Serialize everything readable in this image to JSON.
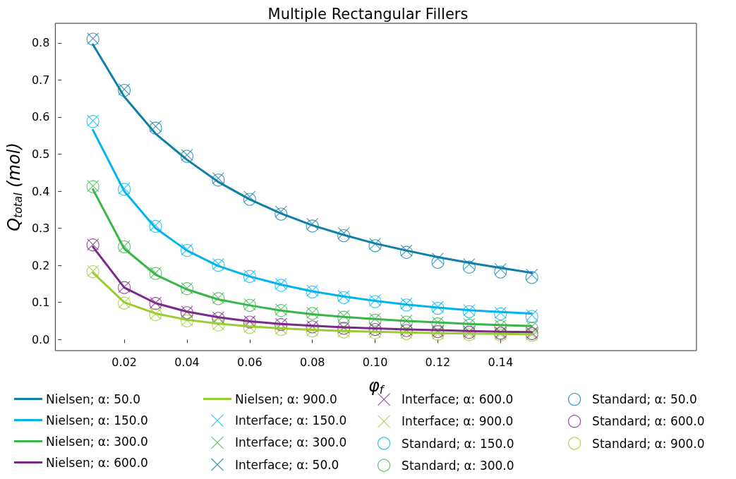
{
  "chart_data": {
    "type": "line",
    "title": "Multiple Rectangular Fillers",
    "xlabel": "φ$_{f}$",
    "ylabel": "Q$_{total}$ (mol)",
    "x": [
      0.01,
      0.02,
      0.03,
      0.04,
      0.05,
      0.06,
      0.07,
      0.08,
      0.09,
      0.1,
      0.11,
      0.12,
      0.13,
      0.14,
      0.15
    ],
    "xlim": [
      -0.002,
      0.2025
    ],
    "ylim": [
      -0.03,
      0.853
    ],
    "xticks": [
      {
        "value": 0.02,
        "label": "0.02"
      },
      {
        "value": 0.04,
        "label": "0.04"
      },
      {
        "value": 0.06,
        "label": "0.06"
      },
      {
        "value": 0.08,
        "label": "0.08"
      },
      {
        "value": 0.1,
        "label": "0.10"
      },
      {
        "value": 0.12,
        "label": "0.12"
      },
      {
        "value": 0.14,
        "label": "0.14"
      }
    ],
    "yticks": [
      {
        "value": 0,
        "label": "0.0"
      },
      {
        "value": 0.1,
        "label": "0.1"
      },
      {
        "value": 0.2,
        "label": "0.2"
      },
      {
        "value": 0.3,
        "label": "0.3"
      },
      {
        "value": 0.4,
        "label": "0.4"
      },
      {
        "value": 0.5,
        "label": "0.5"
      },
      {
        "value": 0.6,
        "label": "0.6"
      },
      {
        "value": 0.7,
        "label": "0.7"
      },
      {
        "value": 0.8,
        "label": "0.8"
      }
    ],
    "grid": false,
    "legend": "bottom",
    "series": [
      {
        "name": "Nielsen; α: 50.0",
        "marker": "none",
        "line_style": "solid",
        "color": "#0e7fa8",
        "values": [
          0.796,
          0.655,
          0.555,
          0.485,
          0.425,
          0.378,
          0.34,
          0.308,
          0.282,
          0.259,
          0.24,
          0.222,
          0.207,
          0.193,
          0.18
        ]
      },
      {
        "name": "Nielsen; α: 150.0",
        "marker": "none",
        "line_style": "solid",
        "color": "#00b4f0",
        "values": [
          0.565,
          0.4,
          0.3,
          0.24,
          0.198,
          0.17,
          0.148,
          0.13,
          0.116,
          0.104,
          0.094,
          0.086,
          0.079,
          0.074,
          0.07
        ]
      },
      {
        "name": "Nielsen; α: 300.0",
        "marker": "none",
        "line_style": "solid",
        "color": "#3ab54a",
        "values": [
          0.405,
          0.245,
          0.175,
          0.135,
          0.108,
          0.092,
          0.078,
          0.068,
          0.061,
          0.055,
          0.05,
          0.046,
          0.042,
          0.039,
          0.036
        ]
      },
      {
        "name": "Nielsen; α: 600.0",
        "marker": "none",
        "line_style": "solid",
        "color": "#7b2a8a",
        "values": [
          0.25,
          0.14,
          0.098,
          0.075,
          0.06,
          0.049,
          0.042,
          0.037,
          0.033,
          0.03,
          0.027,
          0.025,
          0.023,
          0.021,
          0.02
        ]
      },
      {
        "name": "Nielsen; α: 900.0",
        "marker": "none",
        "line_style": "solid",
        "color": "#9acd32",
        "values": [
          0.18,
          0.1,
          0.07,
          0.053,
          0.043,
          0.035,
          0.03,
          0.026,
          0.023,
          0.021,
          0.019,
          0.017,
          0.016,
          0.015,
          0.014
        ]
      },
      {
        "name": "Interface; α: 150.0",
        "type": "scatter",
        "marker": "cross",
        "color": "#00b4f0",
        "values": [
          0.59,
          0.408,
          0.308,
          0.243,
          0.204,
          0.172,
          0.15,
          0.132,
          0.117,
          0.106,
          0.097,
          0.088,
          0.079,
          0.072,
          0.066
        ]
      },
      {
        "name": "Interface; α: 300.0",
        "type": "scatter",
        "marker": "cross",
        "color": "#3ab54a",
        "values": [
          0.414,
          0.252,
          0.18,
          0.138,
          0.112,
          0.095,
          0.081,
          0.072,
          0.064,
          0.056,
          0.051,
          0.046,
          0.042,
          0.038,
          0.035
        ]
      },
      {
        "name": "Interface; α: 50.0",
        "type": "scatter",
        "marker": "cross",
        "color": "#0e7fa8",
        "values": [
          0.812,
          0.675,
          0.575,
          0.498,
          0.435,
          0.385,
          0.345,
          0.312,
          0.287,
          0.258,
          0.24,
          0.218,
          0.203,
          0.19,
          0.175
        ]
      },
      {
        "name": "Interface; α: 600.0",
        "type": "scatter",
        "marker": "cross",
        "color": "#7b2a8a",
        "values": [
          0.256,
          0.142,
          0.099,
          0.075,
          0.059,
          0.049,
          0.042,
          0.036,
          0.032,
          0.029,
          0.026,
          0.023,
          0.021,
          0.019,
          0.018
        ]
      },
      {
        "name": "Interface; α: 900.0",
        "type": "scatter",
        "marker": "cross",
        "color": "#9acd32",
        "values": [
          0.185,
          0.1,
          0.069,
          0.052,
          0.041,
          0.034,
          0.029,
          0.025,
          0.022,
          0.02,
          0.018,
          0.016,
          0.015,
          0.014,
          0.013
        ]
      },
      {
        "name": "Standard; α: 150.0",
        "type": "scatter",
        "marker": "circle",
        "color": "#00b4f0",
        "values": [
          0.588,
          0.405,
          0.305,
          0.24,
          0.2,
          0.17,
          0.146,
          0.128,
          0.113,
          0.102,
          0.093,
          0.084,
          0.075,
          0.069,
          0.062
        ]
      },
      {
        "name": "Standard; α: 300.0",
        "type": "scatter",
        "marker": "circle",
        "color": "#3ab54a",
        "values": [
          0.412,
          0.25,
          0.178,
          0.137,
          0.11,
          0.092,
          0.078,
          0.07,
          0.06,
          0.052,
          0.047,
          0.042,
          0.038,
          0.035,
          0.03
        ]
      },
      {
        "name": "Standard; α: 50.0",
        "type": "scatter",
        "marker": "circle",
        "color": "#0e7fa8",
        "values": [
          0.81,
          0.672,
          0.57,
          0.494,
          0.43,
          0.378,
          0.338,
          0.306,
          0.28,
          0.253,
          0.235,
          0.208,
          0.195,
          0.182,
          0.167
        ]
      },
      {
        "name": "Standard; α: 600.0",
        "type": "scatter",
        "marker": "circle",
        "color": "#7b2a8a",
        "values": [
          0.255,
          0.14,
          0.097,
          0.072,
          0.057,
          0.047,
          0.04,
          0.034,
          0.03,
          0.027,
          0.024,
          0.021,
          0.019,
          0.017,
          0.016
        ]
      },
      {
        "name": "Standard; α: 900.0",
        "type": "scatter",
        "marker": "circle",
        "color": "#9acd32",
        "values": [
          0.183,
          0.098,
          0.067,
          0.05,
          0.039,
          0.032,
          0.027,
          0.023,
          0.02,
          0.018,
          0.016,
          0.014,
          0.013,
          0.012,
          0.011
        ]
      }
    ]
  }
}
